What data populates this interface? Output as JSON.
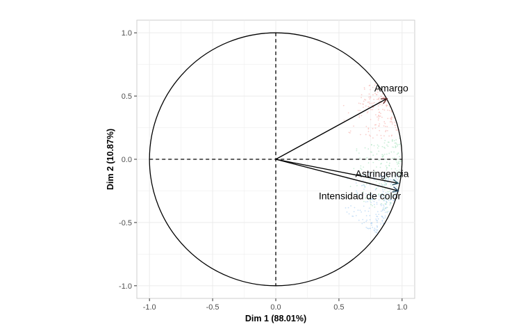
{
  "chart_data": {
    "type": "scatter",
    "subtype": "pca-correlation-circle",
    "title": "",
    "xlabel": "Dim 1 (88.01%)",
    "ylabel": "Dim 2 (10.87%)",
    "xlim": [
      -1.1,
      1.1
    ],
    "ylim": [
      -1.1,
      1.1
    ],
    "x_ticks": [
      -1.0,
      -0.5,
      0.0,
      0.5,
      1.0
    ],
    "x_tick_labels": [
      "-1.0",
      "-0.5",
      "0.0",
      "0.5",
      "1.0"
    ],
    "y_ticks": [
      -1.0,
      -0.5,
      0.0,
      0.5,
      1.0
    ],
    "y_tick_labels": [
      "-1.0",
      "-0.5",
      "0.0",
      "0.5",
      "1.0"
    ],
    "grid": true,
    "background": "#ffffff",
    "grid_color": "#ebebeb",
    "circle_radius": 1.0,
    "reference_lines": [
      0,
      0
    ],
    "arrows": [
      {
        "name": "Amargo",
        "x": 0.88,
        "y": 0.48,
        "color": "#6b2b2b"
      },
      {
        "name": "Astringencia",
        "x": 0.97,
        "y": -0.19,
        "color": "#2b5a6b"
      },
      {
        "name": "Intensidad de color",
        "x": 0.97,
        "y": -0.25,
        "color": "#2b4f6b"
      }
    ],
    "labels": [
      {
        "text": "Amargo",
        "x": 0.78,
        "y": 0.535
      },
      {
        "text": "Astringencia",
        "x": 0.63,
        "y": -0.14
      },
      {
        "text": "Intensidad de color",
        "x": 0.34,
        "y": -0.315
      }
    ],
    "point_cloud": {
      "description_colors": [
        "#f4a6a0",
        "#9ee0b8",
        "#9ec9f0"
      ],
      "series": [
        {
          "color": "#f4a6a0",
          "center_angle_deg": 25,
          "spread_deg": 14,
          "count": 160
        },
        {
          "color": "#9ee0b8",
          "center_angle_deg": -8,
          "spread_deg": 18,
          "count": 190
        },
        {
          "color": "#9ec9f0",
          "center_angle_deg": -22,
          "spread_deg": 15,
          "count": 200
        }
      ]
    }
  }
}
